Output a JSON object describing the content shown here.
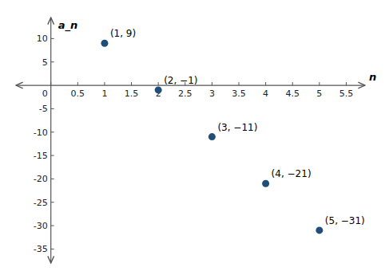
{
  "chart_data": {
    "type": "scatter",
    "x": [
      1,
      2,
      3,
      4,
      5
    ],
    "values": [
      9,
      -1,
      -11,
      -21,
      -31
    ],
    "value_labels": [
      "(1, 9)",
      "(2, −1)",
      "(3, −11)",
      "(4, −21)",
      "(5, −31)"
    ],
    "data_labels": true,
    "color": "#1f4e79",
    "xlabel": "n",
    "ylabel": "a_n",
    "xlim": [
      -0.65,
      5.85
    ],
    "ylim": [
      -38,
      14.5
    ],
    "xticks": [
      0,
      0.5,
      1,
      1.5,
      2,
      2.5,
      3,
      3.5,
      4,
      4.5,
      5,
      5.5
    ],
    "yticks": [
      -35,
      -30,
      -25,
      -20,
      -15,
      -10,
      -5,
      5,
      10
    ]
  }
}
